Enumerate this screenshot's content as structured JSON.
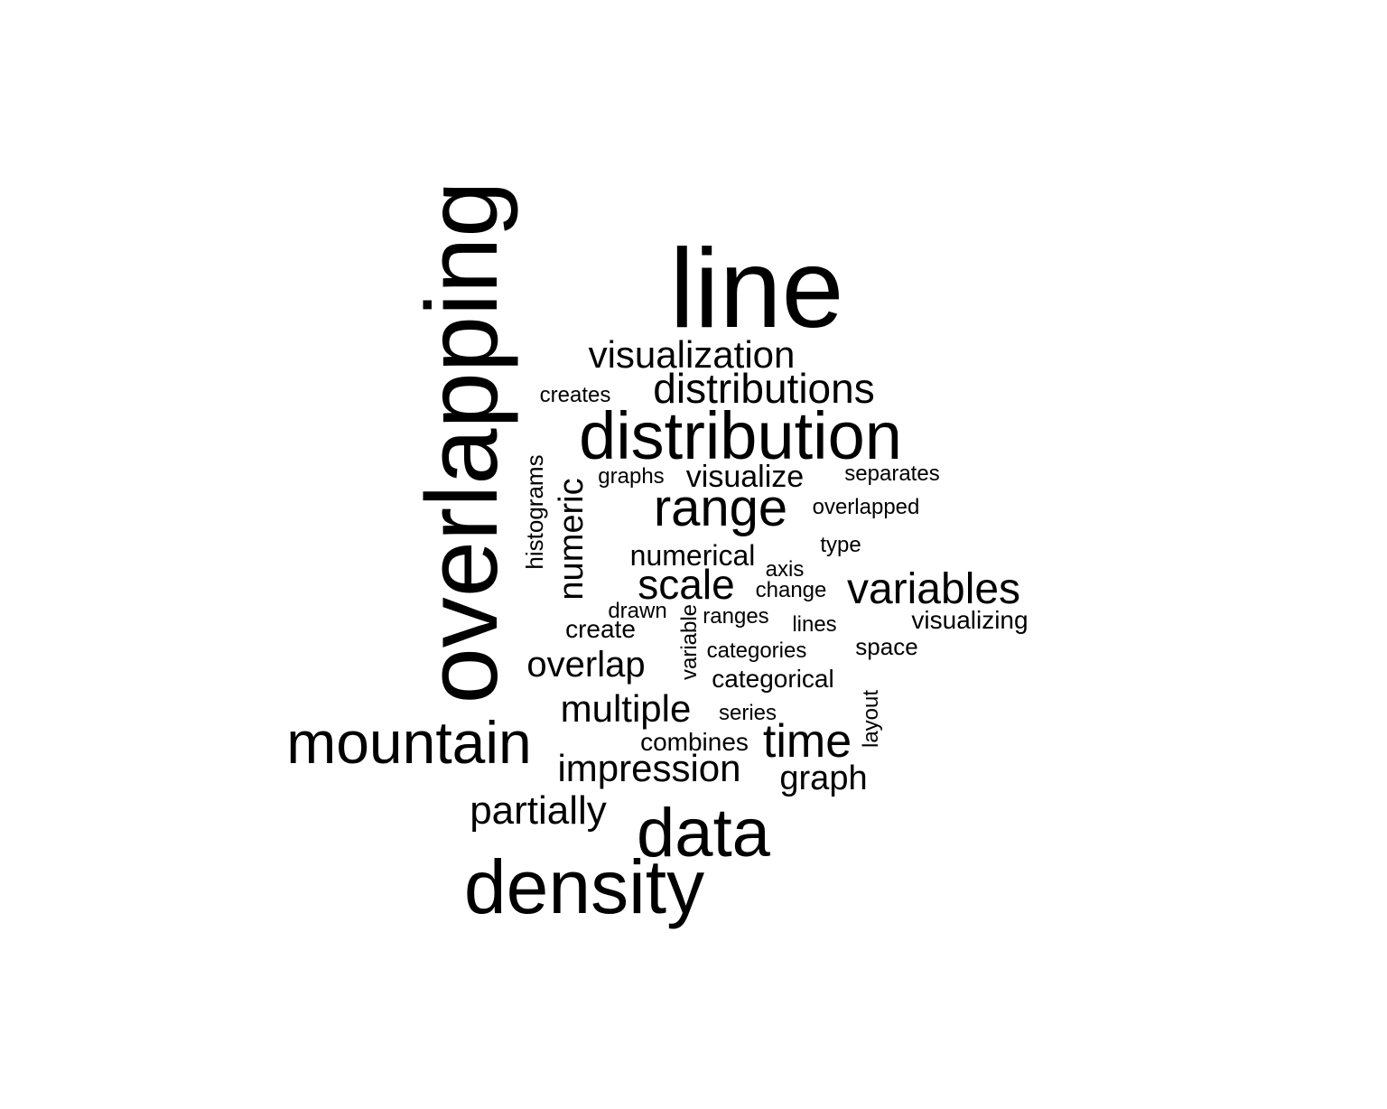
{
  "cloud": {
    "color": "#000000",
    "words": [
      {
        "text": "line",
        "rotated": false
      },
      {
        "text": "overlapping",
        "rotated": true
      },
      {
        "text": "visualization",
        "rotated": false
      },
      {
        "text": "distributions",
        "rotated": false
      },
      {
        "text": "creates",
        "rotated": false
      },
      {
        "text": "distribution",
        "rotated": false
      },
      {
        "text": "histograms",
        "rotated": true
      },
      {
        "text": "numeric",
        "rotated": true
      },
      {
        "text": "graphs",
        "rotated": false
      },
      {
        "text": "visualize",
        "rotated": false
      },
      {
        "text": "separates",
        "rotated": false
      },
      {
        "text": "range",
        "rotated": false
      },
      {
        "text": "overlapped",
        "rotated": false
      },
      {
        "text": "type",
        "rotated": false
      },
      {
        "text": "numerical",
        "rotated": false
      },
      {
        "text": "axis",
        "rotated": false
      },
      {
        "text": "scale",
        "rotated": false
      },
      {
        "text": "change",
        "rotated": false
      },
      {
        "text": "variables",
        "rotated": false
      },
      {
        "text": "drawn",
        "rotated": false
      },
      {
        "text": "variable",
        "rotated": true
      },
      {
        "text": "ranges",
        "rotated": false
      },
      {
        "text": "lines",
        "rotated": false
      },
      {
        "text": "visualizing",
        "rotated": false
      },
      {
        "text": "create",
        "rotated": false
      },
      {
        "text": "categories",
        "rotated": false
      },
      {
        "text": "space",
        "rotated": false
      },
      {
        "text": "overlap",
        "rotated": false
      },
      {
        "text": "categorical",
        "rotated": false
      },
      {
        "text": "layout",
        "rotated": true
      },
      {
        "text": "multiple",
        "rotated": false
      },
      {
        "text": "series",
        "rotated": false
      },
      {
        "text": "mountain",
        "rotated": false
      },
      {
        "text": "combines",
        "rotated": false
      },
      {
        "text": "time",
        "rotated": false
      },
      {
        "text": "impression",
        "rotated": false
      },
      {
        "text": "graph",
        "rotated": false
      },
      {
        "text": "partially",
        "rotated": false
      },
      {
        "text": "data",
        "rotated": false
      },
      {
        "text": "density",
        "rotated": false
      }
    ]
  }
}
